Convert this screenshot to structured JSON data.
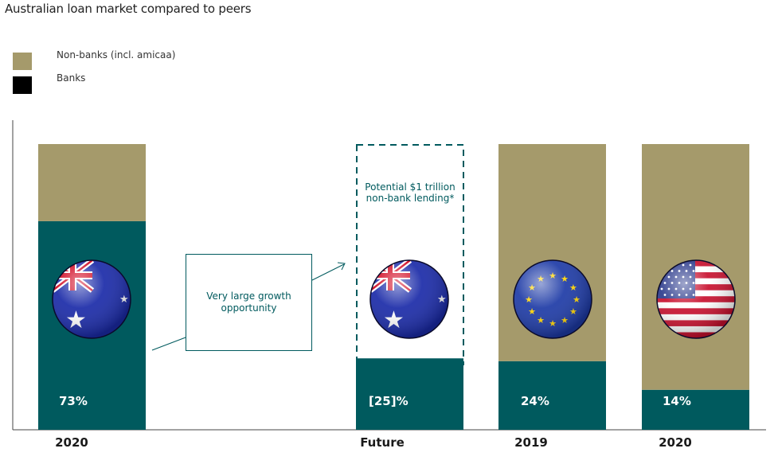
{
  "title": "Australian loan market compared to peers",
  "legend": [
    {
      "label": "Non-banks (incl. amicaa)",
      "color": "#a59a6b"
    },
    {
      "label": "Banks",
      "color": "#000000"
    }
  ],
  "colors": {
    "nonbank": "#a59a6b",
    "bank": "#005a5e",
    "axis": "#444444",
    "accent": "#005a5e"
  },
  "callout": {
    "text": "Very large growth opportunity"
  },
  "dashed_box": {
    "text": "Potential $1 trillion non-bank lending*"
  },
  "chart_data": {
    "type": "bar",
    "stacked": true,
    "categories": [
      "2020",
      "Future",
      "2019",
      "2020"
    ],
    "flags": [
      "australia-flag-icon",
      "australia-flag-icon",
      "eu-flag-icon",
      "usa-flag-icon"
    ],
    "series": [
      {
        "name": "Banks",
        "values": [
          73,
          25,
          24,
          14
        ]
      },
      {
        "name": "Non-banks (incl. amicaa)",
        "values": [
          27,
          0,
          76,
          86
        ]
      }
    ],
    "data_labels": [
      "73%",
      "[25]%",
      "24%",
      "14%"
    ],
    "ylim": [
      0,
      100
    ],
    "grid": false,
    "legend_position": "top-left"
  }
}
